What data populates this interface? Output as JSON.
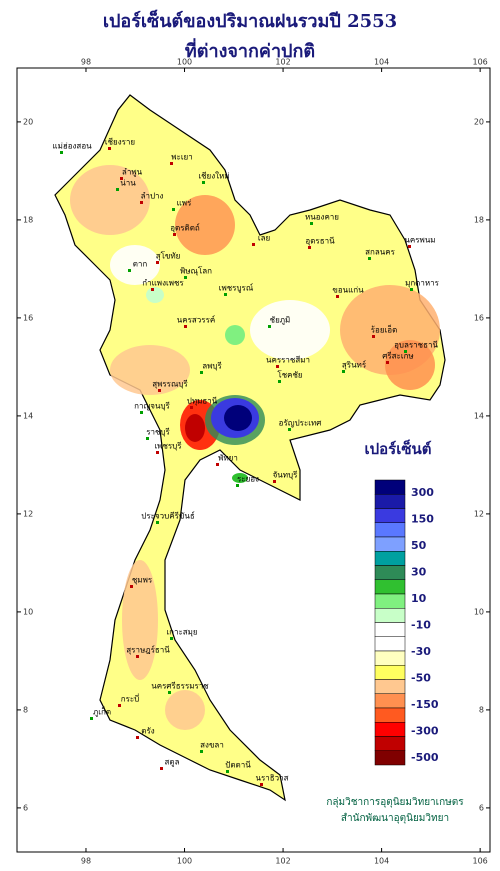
{
  "title": [
    "เปอร์เซ็นต์ของปริมาณฝนรวมปี 2553",
    "ที่ต่างจากค่าปกติ"
  ],
  "map": {
    "xlim": [
      96.6,
      106.2
    ],
    "ylim": [
      5.1,
      21.1
    ],
    "xticks": [
      98,
      100,
      102,
      104,
      106
    ],
    "yticks": [
      6,
      8,
      10,
      12,
      14,
      16,
      18,
      20
    ],
    "places": [
      "เชียงราย",
      "แม่ฮ่องสอน",
      "พะเยา",
      "เชียงใหม่",
      "ลำพูน",
      "น่าน",
      "ลำปาง",
      "แพร่",
      "อุตรดิตถ์",
      "ตาก",
      "สุโขทัย",
      "พิษณุโลก",
      "กำแพงเพชร",
      "เพชรบูรณ์",
      "เลย",
      "หนองคาย",
      "อุดรธานี",
      "สกลนคร",
      "นครพนม",
      "มุกดาหาร",
      "ขอนแก่น",
      "ชัยภูมิ",
      "นครสวรรค์",
      "ลพบุรี",
      "ร้อยเอ็ด",
      "อุบลราชธานี",
      "ศรีสะเกษ",
      "สุรินทร์",
      "นครราชสีมา",
      "โชคชัย",
      "สุพรรณบุรี",
      "กาญจนบุรี",
      "ปทุมธานี",
      "ราชบุรี",
      "เพชรบุรี",
      "อรัญประเทศ",
      "พัทยา",
      "ระยอง",
      "จันทบุรี",
      "ประจวบคีรีขันธ์",
      "ชุมพร",
      "เกาะสมุย",
      "สุราษฎร์ธานี",
      "นครศรีธรรมราช",
      "กระบี่",
      "ภูเก็ต",
      "ตรัง",
      "สงขลา",
      "สตูล",
      "ปัตตานี",
      "นราธิวาส"
    ]
  },
  "legend": {
    "title": "เปอร์เซ็นต์",
    "colors": [
      "#00007a",
      "#1a1aa8",
      "#3a3ae0",
      "#5a78ff",
      "#7ea0ff",
      "#00a0a0",
      "#2e8b57",
      "#30c030",
      "#80f080",
      "#c8ffc8",
      "#ffffff",
      "#ffffff",
      "#ffffc0",
      "#ffff60",
      "#ffc890",
      "#ff9050",
      "#ff5a20",
      "#ff0000",
      "#c00000",
      "#800000"
    ],
    "labels": [
      "300",
      "150",
      "50",
      "30",
      "10",
      "-10",
      "-30",
      "-50",
      "-150",
      "-300",
      "-500"
    ]
  },
  "credit": [
    "กลุ่มวิชาการอุตุนิยมวิทยาเกษตร",
    "สำนักพัฒนาอุตุนิยมวิทยา"
  ]
}
